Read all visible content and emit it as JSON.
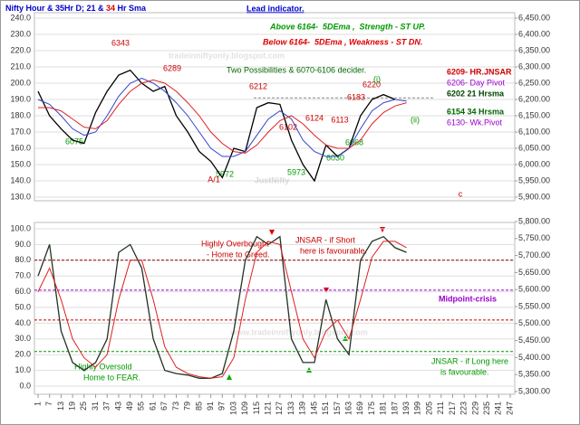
{
  "chart_data": [
    {
      "type": "line",
      "title_parts": [
        "Nifty Hour & 35Hr D; 21 & ",
        "34",
        " Hr Sma"
      ],
      "x": [
        1,
        7,
        13,
        19,
        25,
        31,
        37,
        43,
        49,
        55,
        61,
        67,
        73,
        79,
        85,
        91,
        97,
        103,
        109,
        115,
        121,
        127,
        133,
        139,
        145,
        151,
        157,
        163,
        169,
        175,
        181,
        187,
        193
      ],
      "ylim": [
        130,
        240
      ],
      "yticks": [
        {
          "value": 130,
          "label": "130.0"
        },
        {
          "value": 140,
          "label": "140.0"
        },
        {
          "value": 150,
          "label": "150.0"
        },
        {
          "value": 160,
          "label": "160.0"
        },
        {
          "value": 170,
          "label": "170.0"
        },
        {
          "value": 180,
          "label": "180.0"
        },
        {
          "value": 190,
          "label": "190.0"
        },
        {
          "value": 200,
          "label": "200.0"
        },
        {
          "value": 210,
          "label": "210.0"
        },
        {
          "value": 220,
          "label": "220.0"
        },
        {
          "value": 230,
          "label": "230.0"
        },
        {
          "value": 240,
          "label": "240.0"
        }
      ],
      "y2lim": [
        5900,
        6450
      ],
      "y2ticks": [
        {
          "value": 5900,
          "label": "5,900.00"
        },
        {
          "value": 5950,
          "label": "5,950.00"
        },
        {
          "value": 6000,
          "label": "6,000.00"
        },
        {
          "value": 6050,
          "label": "6,050.00"
        },
        {
          "value": 6100,
          "label": "6,100.00"
        },
        {
          "value": 6150,
          "label": "6,150.00"
        },
        {
          "value": 6200,
          "label": "6,200.00"
        },
        {
          "value": 6250,
          "label": "6,250.00"
        },
        {
          "value": 6300,
          "label": "6,300.00"
        },
        {
          "value": 6350,
          "label": "6,350.00"
        },
        {
          "value": 6400,
          "label": "6,400.00"
        },
        {
          "value": 6450,
          "label": "6,450.00"
        }
      ],
      "grid": true,
      "series": [
        {
          "color": "#000000",
          "values": [
            195,
            180,
            172,
            165,
            163,
            182,
            195,
            205,
            208,
            200,
            195,
            198,
            180,
            170,
            158,
            152,
            142,
            160,
            158,
            185,
            188,
            187,
            165,
            150,
            140,
            162,
            155,
            160,
            180,
            190,
            193,
            190,
            null
          ]
        },
        {
          "color": "#3344cc",
          "values": [
            190,
            187,
            180,
            172,
            168,
            170,
            180,
            192,
            200,
            203,
            200,
            195,
            188,
            180,
            170,
            160,
            155,
            155,
            158,
            168,
            178,
            183,
            178,
            165,
            158,
            155,
            155,
            160,
            172,
            183,
            188,
            190,
            189
          ]
        },
        {
          "color": "#dd2222",
          "values": [
            185,
            185,
            183,
            178,
            173,
            172,
            177,
            187,
            195,
            200,
            202,
            200,
            195,
            188,
            180,
            170,
            163,
            158,
            157,
            162,
            170,
            177,
            180,
            175,
            168,
            162,
            160,
            160,
            165,
            175,
            182,
            186,
            188
          ]
        }
      ],
      "hlines": [
        {
          "value": 191,
          "color": "#888888"
        }
      ],
      "annotations": [
        {
          "text": "Lead indicator.",
          "color": "#0000cc"
        },
        {
          "text": "Above 6164-  5DEma ,  Strength - ST UP.",
          "color": "#009900"
        },
        {
          "text": "Below 6164-  5DEma , Weakness - ST DN.",
          "color": "#dd0000"
        },
        {
          "text": "Two Possibilities & 6070-6106 decider.",
          "color": "#006600"
        },
        {
          "text": "6209- HR.JNSAR",
          "color": "#cc0000"
        },
        {
          "text": "6206- Day Pivot",
          "color": "#9900cc"
        },
        {
          "text": "6202 21 Hrsma",
          "color": "#004400"
        },
        {
          "text": "6154 34 Hrsma",
          "color": "#006600"
        },
        {
          "text": "6130- Wk.Pivot",
          "color": "#9900cc"
        },
        {
          "text": "6343",
          "color": "#cc0000"
        },
        {
          "text": "6289",
          "color": "#cc0000"
        },
        {
          "text": "6212",
          "color": "#cc0000"
        },
        {
          "text": "6124",
          "color": "#cc0000"
        },
        {
          "text": "6102",
          "color": "#cc0000"
        },
        {
          "text": "6113",
          "color": "#cc0000"
        },
        {
          "text": "6183",
          "color": "#cc0000"
        },
        {
          "text": "6220",
          "color": "#cc0000"
        },
        {
          "text": "6075",
          "color": "#009900"
        },
        {
          "text": "5972",
          "color": "#009900"
        },
        {
          "text": "5973",
          "color": "#009900"
        },
        {
          "text": "6030",
          "color": "#009900"
        },
        {
          "text": "6068",
          "color": "#009900"
        },
        {
          "text": "A/1",
          "color": "#cc0000"
        },
        {
          "text": "c",
          "color": "#cc0000"
        },
        {
          "text": "(ii)",
          "color": "#009900"
        },
        {
          "text": "(i)",
          "color": "#009900"
        },
        {
          "text": "JustNifty",
          "color": "#999999"
        },
        {
          "text": "tradeinniftyonly.blogspot.com",
          "color": "#aaaaaa"
        }
      ]
    },
    {
      "type": "line",
      "x": [
        1,
        7,
        13,
        19,
        25,
        31,
        37,
        43,
        49,
        55,
        61,
        67,
        73,
        79,
        85,
        91,
        97,
        103,
        109,
        115,
        121,
        127,
        133,
        139,
        145,
        151,
        157,
        163,
        169,
        175,
        181,
        187,
        193
      ],
      "xlim": [
        1,
        247
      ],
      "xticks": [
        1,
        7,
        13,
        19,
        25,
        31,
        37,
        43,
        49,
        55,
        61,
        67,
        73,
        79,
        85,
        91,
        97,
        103,
        109,
        115,
        121,
        127,
        133,
        139,
        145,
        151,
        157,
        163,
        169,
        175,
        181,
        187,
        193,
        199,
        205,
        211,
        217,
        223,
        229,
        235,
        241,
        247
      ],
      "ylim": [
        0,
        100
      ],
      "yticks": [
        {
          "value": 0,
          "label": "0.0"
        },
        {
          "value": 10,
          "label": "10.0"
        },
        {
          "value": 20,
          "label": "20.0"
        },
        {
          "value": 30,
          "label": "30.0"
        },
        {
          "value": 40,
          "label": "40.0"
        },
        {
          "value": 50,
          "label": "50.0"
        },
        {
          "value": 60,
          "label": "60.0"
        },
        {
          "value": 70,
          "label": "70.0"
        },
        {
          "value": 80,
          "label": "80.0"
        },
        {
          "value": 90,
          "label": "90.0"
        },
        {
          "value": 100,
          "label": "100.0"
        }
      ],
      "y2lim": [
        5300,
        5800
      ],
      "y2ticks": [
        {
          "value": 5300,
          "label": "5,300.00"
        },
        {
          "value": 5350,
          "label": "5,350.00"
        },
        {
          "value": 5400,
          "label": "5,400.00"
        },
        {
          "value": 5450,
          "label": "5,450.00"
        },
        {
          "value": 5500,
          "label": "5,500.00"
        },
        {
          "value": 5550,
          "label": "5,550.00"
        },
        {
          "value": 5600,
          "label": "5,600.00"
        },
        {
          "value": 5650,
          "label": "5,650.00"
        },
        {
          "value": 5700,
          "label": "5,700.00"
        },
        {
          "value": 5750,
          "label": "5,750.00"
        },
        {
          "value": 5800,
          "label": "5,800.00"
        }
      ],
      "grid": true,
      "series": [
        {
          "color": "#223322",
          "values": [
            70,
            90,
            35,
            15,
            10,
            15,
            30,
            85,
            90,
            75,
            30,
            10,
            8,
            7,
            5,
            5,
            8,
            35,
            80,
            95,
            90,
            95,
            30,
            15,
            15,
            55,
            30,
            20,
            80,
            92,
            95,
            88,
            85
          ]
        },
        {
          "color": "#dd2222",
          "values": [
            60,
            75,
            55,
            30,
            18,
            12,
            20,
            55,
            80,
            80,
            55,
            25,
            12,
            8,
            6,
            5,
            6,
            18,
            55,
            85,
            92,
            90,
            60,
            30,
            18,
            35,
            42,
            30,
            55,
            82,
            92,
            92,
            88
          ]
        }
      ],
      "hlines": [
        {
          "value": 80,
          "color": "#8b0000"
        },
        {
          "value": 61,
          "color": "#9900cc"
        },
        {
          "value": 42,
          "color": "#cc0000"
        },
        {
          "value": 22,
          "color": "#009900"
        }
      ],
      "annotations": [
        {
          "text": "Highly Overbought",
          "color": "#cc0000"
        },
        {
          "text": "- Home to Greed.",
          "color": "#cc0000"
        },
        {
          "text": "JNSAR - if Short",
          "color": "#cc0000"
        },
        {
          "text": "here is favourable.",
          "color": "#cc0000"
        },
        {
          "text": "Midpoint-crisis",
          "color": "#9900cc"
        },
        {
          "text": "Highly Oversold",
          "color": "#009900"
        },
        {
          "text": "Home to FEAR.",
          "color": "#009900"
        },
        {
          "text": "JNSAR - if Long here",
          "color": "#009900"
        },
        {
          "text": "is favourable.",
          "color": "#009900"
        },
        {
          "text": "www.tradeinniftyonly.blogspot.com",
          "color": "#aaaaaa"
        }
      ]
    }
  ]
}
